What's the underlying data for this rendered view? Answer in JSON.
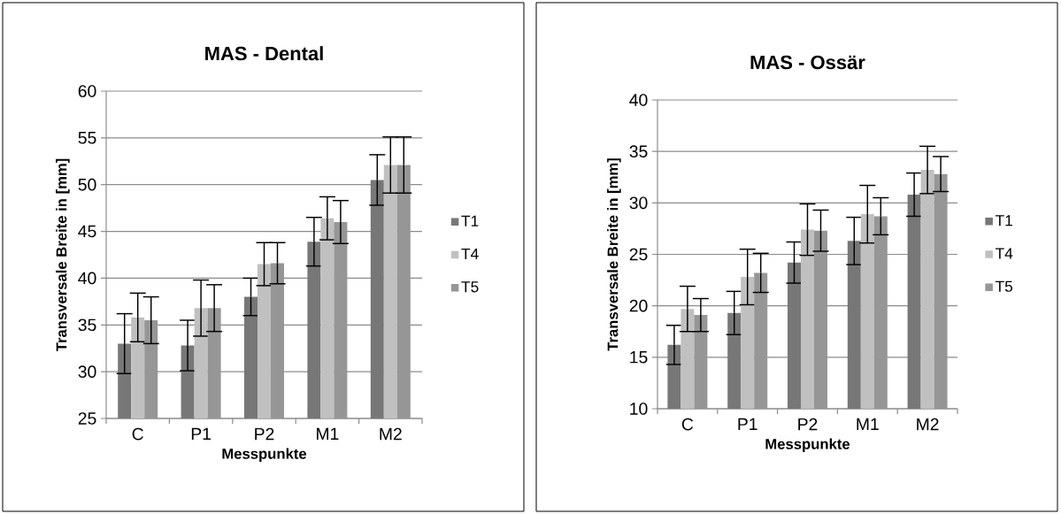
{
  "chart_data": [
    {
      "type": "bar",
      "title": "MAS - Dental",
      "xlabel": "Messpunkte",
      "ylabel": "Transversale Breite in [mm]",
      "categories": [
        "C",
        "P1",
        "P2",
        "M1",
        "M2"
      ],
      "series": [
        {
          "name": "T1",
          "color": "#777777",
          "values": [
            33.0,
            32.8,
            38.0,
            43.9,
            50.5
          ],
          "errors": [
            3.2,
            2.7,
            2.0,
            2.6,
            2.7
          ]
        },
        {
          "name": "T4",
          "color": "#c0c0c0",
          "values": [
            35.8,
            36.8,
            41.5,
            46.4,
            52.1
          ],
          "errors": [
            2.6,
            3.0,
            2.3,
            2.3,
            3.0
          ]
        },
        {
          "name": "T5",
          "color": "#969696",
          "values": [
            35.5,
            36.8,
            41.6,
            46.0,
            52.1
          ],
          "errors": [
            2.5,
            2.5,
            2.2,
            2.3,
            3.0
          ]
        }
      ],
      "ylim": [
        25,
        60
      ],
      "yticks": [
        25,
        30,
        35,
        40,
        45,
        50,
        55,
        60
      ],
      "grid": "y",
      "legend": "right"
    },
    {
      "type": "bar",
      "title": "MAS - Ossär",
      "xlabel": "Messpunkte",
      "ylabel": "Transversale Breite in [mm]",
      "categories": [
        "C",
        "P1",
        "P2",
        "M1",
        "M2"
      ],
      "series": [
        {
          "name": "T1",
          "color": "#777777",
          "values": [
            16.2,
            19.3,
            24.2,
            26.3,
            30.8
          ],
          "errors": [
            1.9,
            2.1,
            2.0,
            2.3,
            2.1
          ]
        },
        {
          "name": "T4",
          "color": "#c0c0c0",
          "values": [
            19.7,
            22.8,
            27.4,
            28.9,
            33.2
          ],
          "errors": [
            2.2,
            2.7,
            2.5,
            2.8,
            2.3
          ]
        },
        {
          "name": "T5",
          "color": "#969696",
          "values": [
            19.1,
            23.2,
            27.3,
            28.7,
            32.8
          ],
          "errors": [
            1.6,
            1.9,
            2.0,
            1.8,
            1.7
          ]
        }
      ],
      "ylim": [
        10,
        40
      ],
      "yticks": [
        10,
        15,
        20,
        25,
        30,
        35,
        40
      ],
      "grid": "y",
      "legend": "right"
    }
  ]
}
